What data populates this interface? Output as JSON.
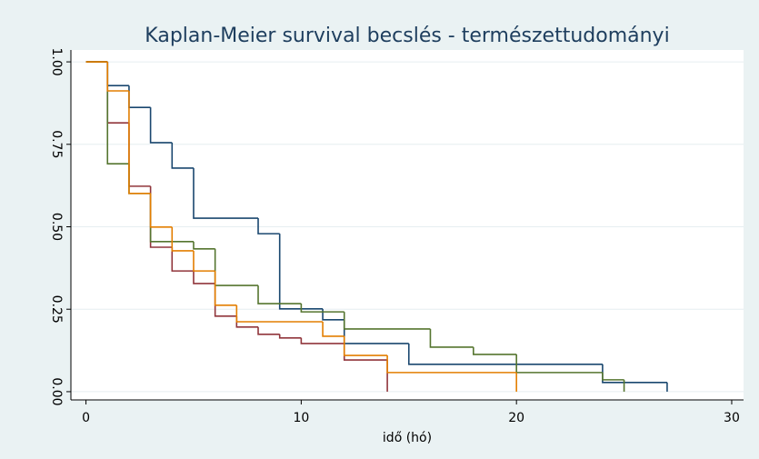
{
  "chart_data": {
    "type": "step",
    "title": "Kaplan-Meier survival becslés - természettudományi",
    "x_label": "idő (hó)",
    "xlim": [
      -0.7,
      30.55
    ],
    "xticks": [
      0,
      10,
      20,
      30
    ],
    "ylim": [
      -0.025,
      1.036
    ],
    "yticks": [
      {
        "value": 0,
        "label": "0.00"
      },
      {
        "value": 0.25,
        "label": "0.25"
      },
      {
        "value": 0.5,
        "label": "0.50"
      },
      {
        "value": 0.75,
        "label": "0.75"
      },
      {
        "value": 1,
        "label": "1.00"
      }
    ],
    "grid": true,
    "series": [
      {
        "color": "#1a476f",
        "x": [
          0,
          1,
          2,
          3,
          4,
          5,
          8,
          9,
          11,
          12,
          15,
          24,
          27
        ],
        "values": [
          1,
          0.928,
          0.862,
          0.755,
          0.678,
          0.526,
          0.479,
          0.251,
          0.218,
          0.146,
          0.083,
          0.028,
          0
        ]
      },
      {
        "color": "#90353b",
        "x": [
          0,
          1,
          2,
          3,
          4,
          5,
          6,
          7,
          8,
          9,
          10,
          12,
          14
        ],
        "values": [
          1,
          0.815,
          0.623,
          0.438,
          0.366,
          0.328,
          0.229,
          0.196,
          0.174,
          0.163,
          0.146,
          0.096,
          0
        ]
      },
      {
        "color": "#55752f",
        "x": [
          0,
          1,
          2,
          3,
          5,
          6,
          8,
          10,
          12,
          16,
          18,
          20,
          24,
          25
        ],
        "values": [
          1,
          0.691,
          0.601,
          0.455,
          0.433,
          0.322,
          0.267,
          0.242,
          0.19,
          0.135,
          0.113,
          0.058,
          0.036,
          0
        ]
      },
      {
        "color": "#e37e00",
        "x": [
          0,
          1,
          2,
          3,
          4,
          5,
          6,
          7,
          11,
          12,
          14,
          20
        ],
        "values": [
          1,
          0.912,
          0.601,
          0.499,
          0.427,
          0.366,
          0.262,
          0.212,
          0.168,
          0.11,
          0.058,
          0
        ]
      }
    ]
  }
}
